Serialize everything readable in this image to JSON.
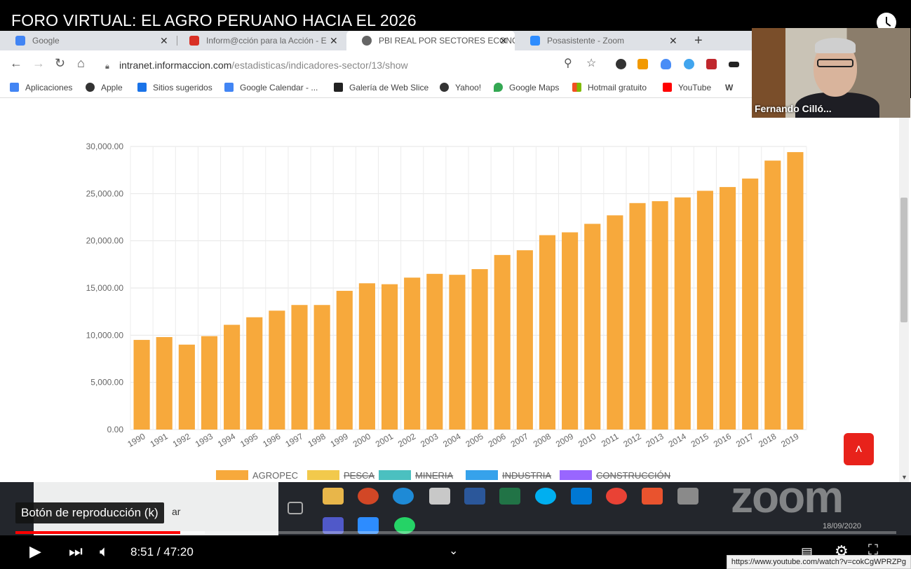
{
  "video": {
    "title": "FORO VIRTUAL: EL AGRO PERUANO HACIA EL 2026",
    "tooltip": "Botón de reproducción (k)",
    "tooltip_behind": "ar",
    "time": "8:51 / 47:20",
    "progress_fraction": 0.187,
    "status_url": "https://www.youtube.com/watch?v=cokCgWPRZPg"
  },
  "browser": {
    "tabs": [
      {
        "label": "Google",
        "icon": "google-icon",
        "color": "#4285f4"
      },
      {
        "label": "Inform@cción para la Acción - E",
        "icon": "informaccion-icon",
        "color": "#d93025"
      },
      {
        "label": "PBI REAL POR SECTORES ECONÓ",
        "icon": "globe-icon",
        "color": "#555555"
      },
      {
        "label": "Posasistente - Zoom",
        "icon": "zoom-icon",
        "color": "#2d8cff"
      }
    ],
    "url_host": "intranet.informaccion.com",
    "url_path": "/estadisticas/indicadores-sector/13/show",
    "bookmarks": [
      {
        "label": "Aplicaciones",
        "color": "#4285f4"
      },
      {
        "label": "Apple",
        "color": "#333333"
      },
      {
        "label": "Sitios sugeridos",
        "color": "#1a73e8"
      },
      {
        "label": "Google Calendar - ...",
        "color": "#4285f4"
      },
      {
        "label": "Galería de Web Slice",
        "color": "#222222"
      },
      {
        "label": "Yahoo!",
        "color": "#333333"
      },
      {
        "label": "Google Maps",
        "color": "#34a853"
      },
      {
        "label": "Hotmail gratuito",
        "color": "#f25022"
      },
      {
        "label": "YouTube",
        "color": "#ff0000"
      },
      {
        "label": "W",
        "color": "#333333"
      }
    ]
  },
  "webcam": {
    "name": "Fernando Cilló..."
  },
  "taskbar": {
    "date": "18/09/2020",
    "watermark": "zoom"
  },
  "chart_data": {
    "type": "bar",
    "categories": [
      "1990",
      "1991",
      "1992",
      "1993",
      "1994",
      "1995",
      "1996",
      "1997",
      "1998",
      "1999",
      "2000",
      "2001",
      "2002",
      "2003",
      "2004",
      "2005",
      "2006",
      "2007",
      "2008",
      "2009",
      "2010",
      "2011",
      "2012",
      "2013",
      "2014",
      "2015",
      "2016",
      "2017",
      "2018",
      "2019"
    ],
    "series": [
      {
        "name": "AGROPEC",
        "color": "#f7a93c",
        "values": [
          9500,
          9800,
          9000,
          9900,
          11100,
          11900,
          12600,
          13200,
          13200,
          14700,
          15500,
          15400,
          16100,
          16500,
          16400,
          17000,
          18500,
          19000,
          20600,
          20900,
          21800,
          22700,
          24000,
          24200,
          24600,
          25300,
          25700,
          26600,
          28500,
          29400
        ]
      }
    ],
    "legend": [
      {
        "label": "AGROPEC",
        "color": "#f7a93c",
        "hidden": false
      },
      {
        "label": "PESCA",
        "color": "#f2c94c",
        "hidden": true
      },
      {
        "label": "MINERIA",
        "color": "#4bc0c0",
        "hidden": true
      },
      {
        "label": "INDUSTRIA",
        "color": "#36a2eb",
        "hidden": true
      },
      {
        "label": "CONSTRUCCIÓN",
        "color": "#9966ff",
        "hidden": true
      }
    ],
    "yticks": [
      "0.00",
      "5,000.00",
      "10,000.00",
      "15,000.00",
      "20,000.00",
      "25,000.00",
      "30,000.00"
    ],
    "ylim": [
      0,
      30000
    ],
    "legend_position": "bottom",
    "grid": true
  }
}
